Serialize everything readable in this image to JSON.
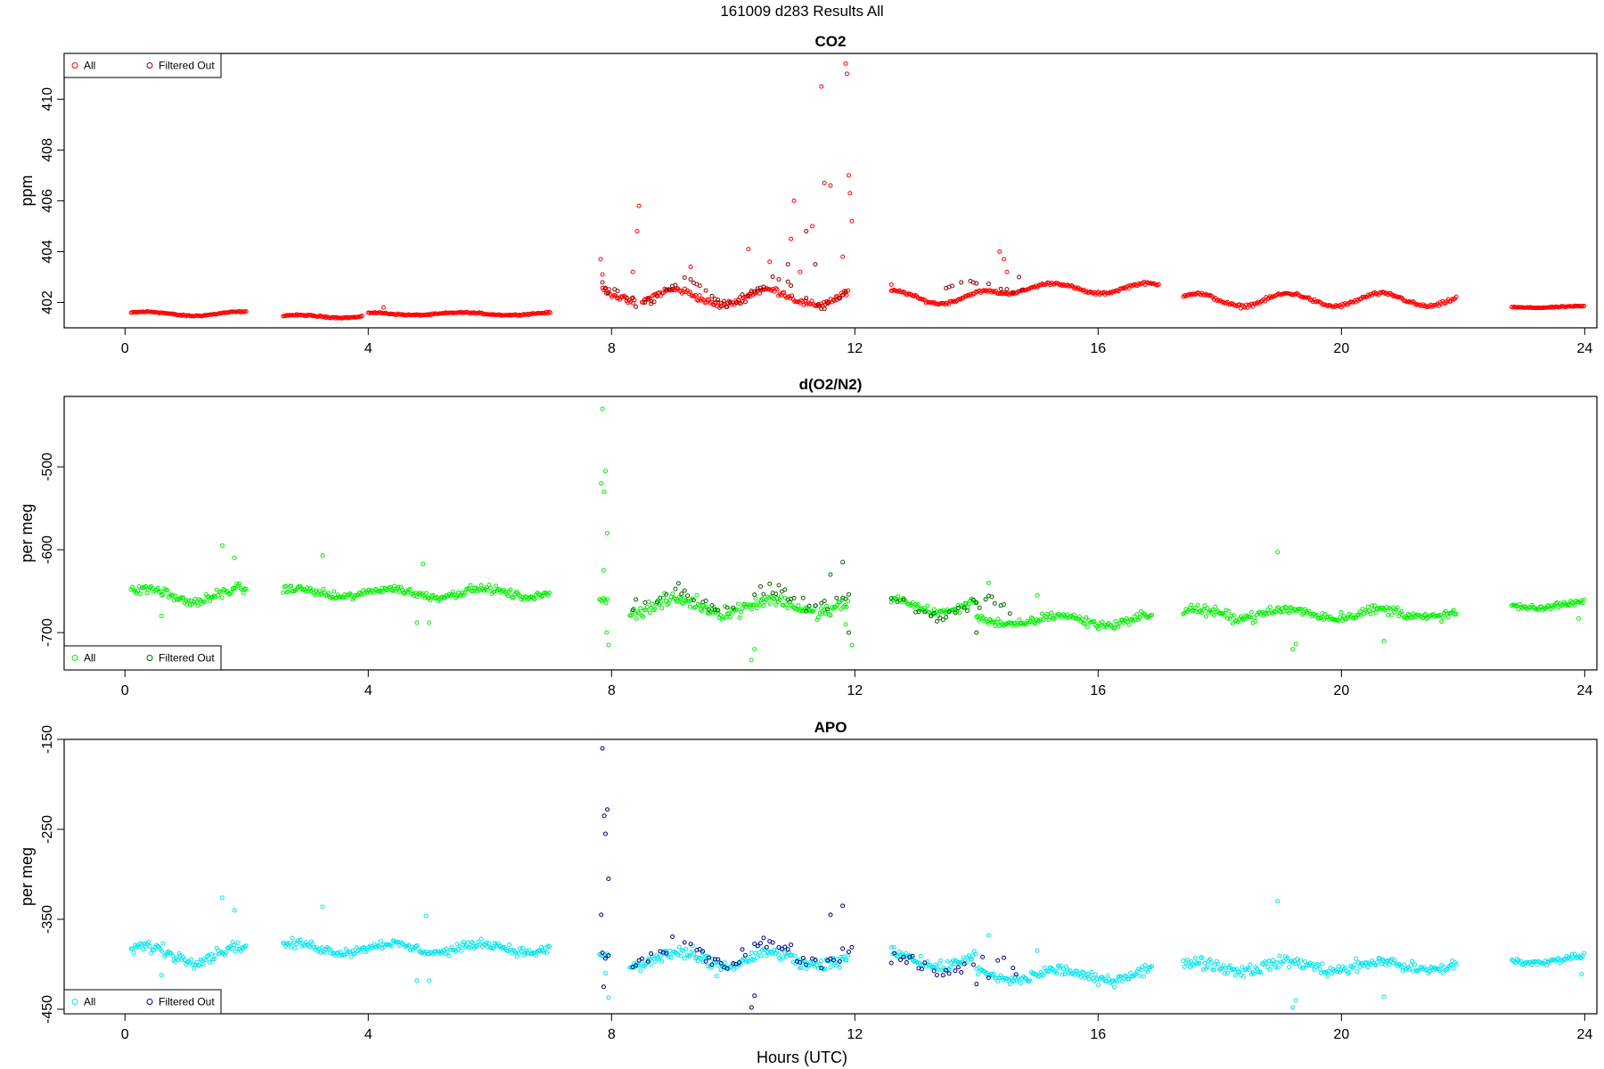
{
  "figure": {
    "title": "161009   d283   Results All",
    "xlabel": "Hours (UTC)"
  },
  "chart_data": [
    {
      "type": "scatter",
      "title": "CO2",
      "ylabel": "ppm",
      "xlim": [
        -1,
        24.2
      ],
      "ylim": [
        401.0,
        411.8
      ],
      "xticks": [
        0,
        4,
        8,
        12,
        16,
        20,
        24
      ],
      "xtick_labels": [
        "0",
        "4",
        "8",
        "12",
        "16",
        "20",
        "24"
      ],
      "yticks": [
        402,
        404,
        406,
        408,
        410
      ],
      "ytick_labels": [
        "402",
        "404",
        "406",
        "408",
        "410"
      ],
      "legend_position": "top-left",
      "legend": [
        "All",
        "Filtered Out"
      ],
      "colors": {
        "all": "#ff0000",
        "filtered": "#8b0000"
      },
      "series": [
        {
          "name": "All",
          "segments": [
            {
              "x0": 0.1,
              "x1": 2.0,
              "base": 401.55,
              "amp": 0.08,
              "noise": 0.04,
              "spikes": []
            },
            {
              "x0": 2.6,
              "x1": 3.9,
              "base": 401.45,
              "amp": 0.05,
              "noise": 0.04,
              "spikes": []
            },
            {
              "x0": 4.0,
              "x1": 7.0,
              "base": 401.55,
              "amp": 0.05,
              "noise": 0.04,
              "spikes": [
                [
                  4.25,
                  401.8
                ]
              ]
            },
            {
              "x0": 7.85,
              "x1": 8.4,
              "base": 402.3,
              "amp": 0.3,
              "noise": 0.2,
              "spikes": [
                [
                  7.82,
                  403.7
                ],
                [
                  7.85,
                  403.1
                ],
                [
                  8.45,
                  405.8
                ],
                [
                  8.42,
                  404.8
                ]
              ]
            },
            {
              "x0": 8.5,
              "x1": 11.9,
              "base": 402.2,
              "amp": 0.3,
              "noise": 0.2,
              "spikes": [
                [
                  8.35,
                  403.2
                ],
                [
                  9.3,
                  403.4
                ],
                [
                  10.25,
                  404.1
                ],
                [
                  10.6,
                  403.6
                ],
                [
                  10.95,
                  404.5
                ],
                [
                  11.0,
                  406.0
                ],
                [
                  11.3,
                  405.0
                ],
                [
                  11.45,
                  410.5
                ],
                [
                  11.5,
                  406.7
                ],
                [
                  11.6,
                  406.6
                ],
                [
                  11.85,
                  411.4
                ],
                [
                  11.87,
                  411.0
                ],
                [
                  11.9,
                  407.0
                ],
                [
                  11.92,
                  406.3
                ],
                [
                  11.95,
                  405.2
                ],
                [
                  11.8,
                  403.8
                ],
                [
                  11.1,
                  403.2
                ]
              ]
            },
            {
              "x0": 12.6,
              "x1": 14.4,
              "base": 402.2,
              "amp": 0.25,
              "noise": 0.08,
              "spikes": [
                [
                  12.6,
                  402.7
                ]
              ]
            },
            {
              "x0": 14.4,
              "x1": 17.0,
              "base": 402.55,
              "amp": 0.2,
              "noise": 0.08,
              "spikes": [
                [
                  14.38,
                  404.0
                ],
                [
                  14.45,
                  403.7
                ],
                [
                  14.5,
                  403.2
                ]
              ]
            },
            {
              "x0": 17.4,
              "x1": 21.9,
              "base": 402.1,
              "amp": 0.25,
              "noise": 0.1,
              "spikes": []
            },
            {
              "x0": 22.8,
              "x1": 24.0,
              "base": 401.82,
              "amp": 0.03,
              "noise": 0.03,
              "spikes": []
            }
          ]
        },
        {
          "name": "Filtered Out",
          "segments": [
            {
              "x0": 7.8,
              "x1": 12.0,
              "base": 402.4,
              "amp": 0.4,
              "noise": 0.35,
              "spikes": [
                [
                  10.9,
                  403.5
                ],
                [
                  11.2,
                  404.8
                ],
                [
                  11.35,
                  403.5
                ]
              ]
            },
            {
              "x0": 13.5,
              "x1": 14.8,
              "base": 402.6,
              "amp": 0.2,
              "noise": 0.15,
              "spikes": [
                [
                  14.7,
                  403.0
                ]
              ]
            }
          ]
        }
      ]
    },
    {
      "type": "scatter",
      "title": "d(O2/N2)",
      "ylabel": "per meg",
      "xlim": [
        -1,
        24.2
      ],
      "ylim": [
        -745,
        -415
      ],
      "xticks": [
        0,
        4,
        8,
        12,
        16,
        20,
        24
      ],
      "xtick_labels": [
        "0",
        "4",
        "8",
        "12",
        "16",
        "20",
        "24"
      ],
      "yticks": [
        -700,
        -600,
        -500
      ],
      "ytick_labels": [
        "-700",
        "-600",
        "-500"
      ],
      "legend_position": "bottom-left",
      "legend": [
        "All",
        "Filtered Out"
      ],
      "colors": {
        "all": "#00ee00",
        "filtered": "#006400"
      },
      "series": [
        {
          "name": "All",
          "segments": [
            {
              "x0": 0.1,
              "x1": 2.0,
              "base": -655,
              "amp": 8,
              "noise": 9,
              "spikes": [
                [
                  1.6,
                  -595
                ],
                [
                  1.8,
                  -610
                ],
                [
                  0.6,
                  -680
                ]
              ]
            },
            {
              "x0": 2.6,
              "x1": 7.0,
              "base": -652,
              "amp": 5,
              "noise": 7,
              "spikes": [
                [
                  3.25,
                  -607
                ],
                [
                  4.9,
                  -617
                ],
                [
                  4.8,
                  -688
                ],
                [
                  5.0,
                  -688
                ]
              ]
            },
            {
              "x0": 7.8,
              "x1": 7.95,
              "base": -660,
              "amp": 0,
              "noise": 5,
              "spikes": [
                [
                  7.85,
                  -430
                ],
                [
                  7.9,
                  -505
                ],
                [
                  7.88,
                  -530
                ],
                [
                  7.93,
                  -580
                ],
                [
                  7.83,
                  -520
                ],
                [
                  7.87,
                  -625
                ],
                [
                  7.95,
                  -715
                ],
                [
                  7.92,
                  -700
                ]
              ]
            },
            {
              "x0": 8.3,
              "x1": 11.9,
              "base": -668,
              "amp": 8,
              "noise": 12,
              "spikes": [
                [
                  10.3,
                  -733
                ],
                [
                  10.35,
                  -720
                ],
                [
                  11.95,
                  -715
                ],
                [
                  11.85,
                  -690
                ]
              ]
            },
            {
              "x0": 12.6,
              "x1": 14.0,
              "base": -668,
              "amp": 8,
              "noise": 8,
              "spikes": []
            },
            {
              "x0": 14.0,
              "x1": 16.9,
              "base": -685,
              "amp": 6,
              "noise": 8,
              "spikes": [
                [
                  14.2,
                  -640
                ],
                [
                  15.0,
                  -655
                ]
              ]
            },
            {
              "x0": 17.4,
              "x1": 21.9,
              "base": -677,
              "amp": 5,
              "noise": 9,
              "spikes": [
                [
                  18.95,
                  -603
                ],
                [
                  19.2,
                  -720
                ],
                [
                  19.25,
                  -714
                ],
                [
                  20.7,
                  -710
                ]
              ]
            },
            {
              "x0": 22.8,
              "x1": 24.0,
              "base": -667,
              "amp": 4,
              "noise": 5,
              "spikes": [
                [
                  23.9,
                  -683
                ]
              ]
            }
          ]
        },
        {
          "name": "Filtered Out",
          "segments": [
            {
              "x0": 8.3,
              "x1": 12.0,
              "base": -660,
              "amp": 10,
              "noise": 12,
              "spikes": [
                [
                  11.8,
                  -615
                ],
                [
                  11.6,
                  -630
                ],
                [
                  11.9,
                  -700
                ]
              ]
            },
            {
              "x0": 12.6,
              "x1": 14.6,
              "base": -672,
              "amp": 10,
              "noise": 12,
              "spikes": [
                [
                  14.0,
                  -700
                ]
              ]
            }
          ]
        }
      ]
    },
    {
      "type": "scatter",
      "title": "APO",
      "ylabel": "per meg",
      "xlim": [
        -1,
        24.2
      ],
      "ylim": [
        -455,
        -150
      ],
      "xticks": [
        0,
        4,
        8,
        12,
        16,
        20,
        24
      ],
      "xtick_labels": [
        "0",
        "4",
        "8",
        "12",
        "16",
        "20",
        "24"
      ],
      "yticks": [
        -450,
        -350,
        -250,
        -150
      ],
      "ytick_labels": [
        "-450",
        "-350",
        "-250",
        "-150"
      ],
      "legend_position": "bottom-left",
      "legend": [
        "All",
        "Filtered Out"
      ],
      "colors": {
        "all": "#00e5ee",
        "filtered": "#00008b"
      },
      "series": [
        {
          "name": "All",
          "segments": [
            {
              "x0": 0.1,
              "x1": 2.0,
              "base": -388,
              "amp": 8,
              "noise": 10,
              "spikes": [
                [
                  1.6,
                  -326
                ],
                [
                  1.8,
                  -340
                ],
                [
                  0.6,
                  -412
                ]
              ]
            },
            {
              "x0": 2.6,
              "x1": 7.0,
              "base": -382,
              "amp": 5,
              "noise": 7,
              "spikes": [
                [
                  3.25,
                  -336
                ],
                [
                  4.95,
                  -346
                ],
                [
                  4.8,
                  -418
                ],
                [
                  5.0,
                  -418
                ]
              ]
            },
            {
              "x0": 7.8,
              "x1": 7.95,
              "base": -390,
              "amp": 0,
              "noise": 5,
              "spikes": [
                [
                  7.95,
                  -437
                ],
                [
                  7.9,
                  -410
                ]
              ]
            },
            {
              "x0": 8.3,
              "x1": 11.9,
              "base": -395,
              "amp": 8,
              "noise": 12,
              "spikes": []
            },
            {
              "x0": 12.6,
              "x1": 14.0,
              "base": -395,
              "amp": 8,
              "noise": 8,
              "spikes": []
            },
            {
              "x0": 14.0,
              "x1": 16.9,
              "base": -412,
              "amp": 6,
              "noise": 9,
              "spikes": [
                [
                  14.2,
                  -368
                ],
                [
                  15.0,
                  -385
                ]
              ]
            },
            {
              "x0": 17.4,
              "x1": 21.9,
              "base": -402,
              "amp": 5,
              "noise": 10,
              "spikes": [
                [
                  18.95,
                  -330
                ],
                [
                  19.2,
                  -448
                ],
                [
                  19.25,
                  -440
                ],
                [
                  20.7,
                  -436
                ]
              ]
            },
            {
              "x0": 22.8,
              "x1": 24.0,
              "base": -395,
              "amp": 4,
              "noise": 5,
              "spikes": [
                [
                  23.95,
                  -411
                ]
              ]
            }
          ]
        },
        {
          "name": "Filtered Out",
          "segments": [
            {
              "x0": 7.8,
              "x1": 7.95,
              "base": -390,
              "amp": 0,
              "noise": 5,
              "spikes": [
                [
                  7.85,
                  -160
                ],
                [
                  7.88,
                  -235
                ],
                [
                  7.93,
                  -228
                ],
                [
                  7.9,
                  -255
                ],
                [
                  7.95,
                  -305
                ],
                [
                  7.83,
                  -345
                ],
                [
                  7.87,
                  -425
                ]
              ]
            },
            {
              "x0": 8.3,
              "x1": 12.0,
              "base": -388,
              "amp": 12,
              "noise": 12,
              "spikes": [
                [
                  10.3,
                  -448
                ],
                [
                  10.35,
                  -435
                ],
                [
                  11.8,
                  -335
                ],
                [
                  11.6,
                  -345
                ]
              ]
            },
            {
              "x0": 12.6,
              "x1": 14.8,
              "base": -400,
              "amp": 10,
              "noise": 12,
              "spikes": [
                [
                  14.0,
                  -422
                ],
                [
                  14.2,
                  -415
                ]
              ]
            }
          ]
        }
      ]
    }
  ]
}
